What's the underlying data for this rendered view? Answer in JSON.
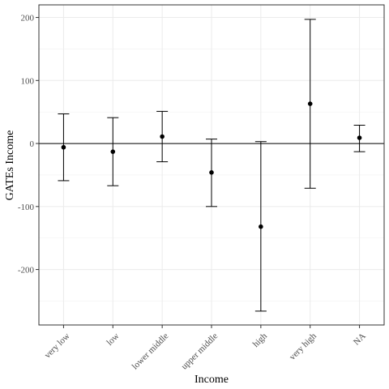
{
  "chart_data": {
    "type": "scatter",
    "title": "",
    "xlabel": "Income",
    "ylabel": "GATEs Income",
    "categories": [
      "very low",
      "low",
      "lower middle",
      "upper middle",
      "high",
      "very high",
      "NA"
    ],
    "points": [
      {
        "category": "very low",
        "estimate": -6,
        "lower": -59,
        "upper": 47
      },
      {
        "category": "low",
        "estimate": -13,
        "lower": -67,
        "upper": 41
      },
      {
        "category": "lower middle",
        "estimate": 11,
        "lower": -29,
        "upper": 51
      },
      {
        "category": "upper middle",
        "estimate": -46,
        "lower": -100,
        "upper": 7
      },
      {
        "category": "high",
        "estimate": -132,
        "lower": -266,
        "upper": 3
      },
      {
        "category": "very high",
        "estimate": 63,
        "lower": -71,
        "upper": 197
      },
      {
        "category": "NA",
        "estimate": 9,
        "lower": -13,
        "upper": 29
      }
    ],
    "reference_line": 0,
    "ylim": [
      -288,
      220
    ],
    "yticks": [
      -200,
      -100,
      0,
      100,
      200
    ],
    "grid": true,
    "legend": "none"
  }
}
